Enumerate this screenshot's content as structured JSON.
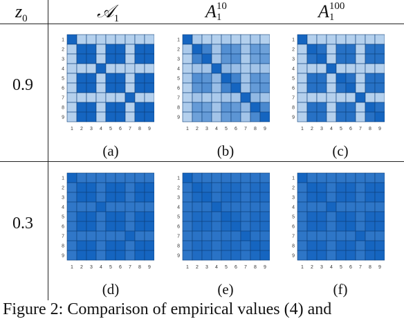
{
  "header": {
    "z_label": "z",
    "z_sub": "0",
    "col1_label": "𝒜",
    "col1_sub": "1",
    "col2_label": "A",
    "col2_sub": "1",
    "col2_sup": "10",
    "col3_label": "A",
    "col3_sup": "100",
    "col3_sub": "1"
  },
  "rows": [
    {
      "z": "0.9",
      "captions": [
        "(a)",
        "(b)",
        "(c)"
      ]
    },
    {
      "z": "0.3",
      "captions": [
        "(d)",
        "(e)",
        "(f)"
      ]
    }
  ],
  "axis_ticks": [
    "1",
    "2",
    "3",
    "4",
    "5",
    "6",
    "7",
    "8",
    "9"
  ],
  "colors": {
    "dark": "#1565c0",
    "light": "#b8d4ee"
  },
  "figure_caption": "Figure 2: Comparison of empirical values (4) and",
  "chart_data": [
    {
      "type": "heatmap",
      "caption": "(a)",
      "rows": [
        "1",
        "2",
        "3",
        "4",
        "5",
        "6",
        "7",
        "8",
        "9"
      ],
      "cols": [
        "1",
        "2",
        "3",
        "4",
        "5",
        "6",
        "7",
        "8",
        "9"
      ],
      "values": [
        [
          1.0,
          0.1,
          0.1,
          0.1,
          0.1,
          0.1,
          0.1,
          0.1,
          0.1
        ],
        [
          0.1,
          1.0,
          1.0,
          0.1,
          1.0,
          1.0,
          0.1,
          1.0,
          1.0
        ],
        [
          0.1,
          1.0,
          1.0,
          0.1,
          1.0,
          1.0,
          0.1,
          1.0,
          1.0
        ],
        [
          0.1,
          0.1,
          0.1,
          1.0,
          0.1,
          0.1,
          0.1,
          0.1,
          0.1
        ],
        [
          0.1,
          1.0,
          1.0,
          0.1,
          1.0,
          1.0,
          0.1,
          1.0,
          1.0
        ],
        [
          0.1,
          1.0,
          1.0,
          0.1,
          1.0,
          1.0,
          0.1,
          1.0,
          1.0
        ],
        [
          0.1,
          0.1,
          0.1,
          0.1,
          0.1,
          0.1,
          1.0,
          0.1,
          0.1
        ],
        [
          0.1,
          1.0,
          1.0,
          0.1,
          1.0,
          1.0,
          0.1,
          1.0,
          1.0
        ],
        [
          0.1,
          1.0,
          1.0,
          0.1,
          1.0,
          1.0,
          0.1,
          1.0,
          1.0
        ]
      ]
    },
    {
      "type": "heatmap",
      "caption": "(b)",
      "rows": [
        "1",
        "2",
        "3",
        "4",
        "5",
        "6",
        "7",
        "8",
        "9"
      ],
      "cols": [
        "1",
        "2",
        "3",
        "4",
        "5",
        "6",
        "7",
        "8",
        "9"
      ],
      "values": [
        [
          1.0,
          0.15,
          0.1,
          0.1,
          0.15,
          0.1,
          0.1,
          0.15,
          0.1
        ],
        [
          0.15,
          1.0,
          0.75,
          0.2,
          0.65,
          0.6,
          0.2,
          0.55,
          0.5
        ],
        [
          0.1,
          0.75,
          1.0,
          0.2,
          0.6,
          0.65,
          0.15,
          0.5,
          0.55
        ],
        [
          0.1,
          0.2,
          0.2,
          1.0,
          0.3,
          0.25,
          0.15,
          0.2,
          0.2
        ],
        [
          0.15,
          0.65,
          0.6,
          0.3,
          1.0,
          0.75,
          0.2,
          0.6,
          0.55
        ],
        [
          0.1,
          0.6,
          0.65,
          0.25,
          0.75,
          1.0,
          0.2,
          0.55,
          0.6
        ],
        [
          0.1,
          0.2,
          0.15,
          0.15,
          0.2,
          0.2,
          1.0,
          0.3,
          0.2
        ],
        [
          0.15,
          0.55,
          0.5,
          0.2,
          0.6,
          0.55,
          0.3,
          1.0,
          0.7
        ],
        [
          0.1,
          0.5,
          0.55,
          0.2,
          0.55,
          0.6,
          0.2,
          0.7,
          1.0
        ]
      ]
    },
    {
      "type": "heatmap",
      "caption": "(c)",
      "rows": [
        "1",
        "2",
        "3",
        "4",
        "5",
        "6",
        "7",
        "8",
        "9"
      ],
      "cols": [
        "1",
        "2",
        "3",
        "4",
        "5",
        "6",
        "7",
        "8",
        "9"
      ],
      "values": [
        [
          1.0,
          0.1,
          0.1,
          0.1,
          0.1,
          0.1,
          0.1,
          0.1,
          0.1
        ],
        [
          0.1,
          1.0,
          0.9,
          0.1,
          0.9,
          0.9,
          0.1,
          0.9,
          0.9
        ],
        [
          0.1,
          0.9,
          1.0,
          0.1,
          0.9,
          0.9,
          0.1,
          0.9,
          0.9
        ],
        [
          0.1,
          0.1,
          0.1,
          1.0,
          0.1,
          0.1,
          0.1,
          0.1,
          0.1
        ],
        [
          0.1,
          0.9,
          0.9,
          0.1,
          1.0,
          0.9,
          0.1,
          0.9,
          0.9
        ],
        [
          0.1,
          0.9,
          0.9,
          0.1,
          0.9,
          1.0,
          0.1,
          0.9,
          0.9
        ],
        [
          0.1,
          0.1,
          0.1,
          0.1,
          0.1,
          0.1,
          1.0,
          0.1,
          0.1
        ],
        [
          0.1,
          0.9,
          0.9,
          0.1,
          0.9,
          0.9,
          0.1,
          1.0,
          0.9
        ],
        [
          0.1,
          0.9,
          0.9,
          0.1,
          0.9,
          0.9,
          0.1,
          0.9,
          1.0
        ]
      ]
    },
    {
      "type": "heatmap",
      "caption": "(d)",
      "rows": [
        "1",
        "2",
        "3",
        "4",
        "5",
        "6",
        "7",
        "8",
        "9"
      ],
      "cols": [
        "1",
        "2",
        "3",
        "4",
        "5",
        "6",
        "7",
        "8",
        "9"
      ],
      "values": [
        [
          1.0,
          0.85,
          0.85,
          0.85,
          0.85,
          0.85,
          0.85,
          0.85,
          0.85
        ],
        [
          0.85,
          1.0,
          1.0,
          0.85,
          1.0,
          1.0,
          0.85,
          1.0,
          1.0
        ],
        [
          0.85,
          1.0,
          1.0,
          0.85,
          1.0,
          1.0,
          0.85,
          1.0,
          1.0
        ],
        [
          0.85,
          0.85,
          0.85,
          1.0,
          0.85,
          0.85,
          0.85,
          0.85,
          0.85
        ],
        [
          0.85,
          1.0,
          1.0,
          0.85,
          1.0,
          1.0,
          0.85,
          1.0,
          1.0
        ],
        [
          0.85,
          1.0,
          1.0,
          0.85,
          1.0,
          1.0,
          0.85,
          1.0,
          1.0
        ],
        [
          0.85,
          0.85,
          0.85,
          0.85,
          0.85,
          0.85,
          1.0,
          0.85,
          0.85
        ],
        [
          0.85,
          1.0,
          1.0,
          0.85,
          1.0,
          1.0,
          0.85,
          1.0,
          1.0
        ],
        [
          0.85,
          1.0,
          1.0,
          0.85,
          1.0,
          1.0,
          0.85,
          1.0,
          1.0
        ]
      ]
    },
    {
      "type": "heatmap",
      "caption": "(e)",
      "rows": [
        "1",
        "2",
        "3",
        "4",
        "5",
        "6",
        "7",
        "8",
        "9"
      ],
      "cols": [
        "1",
        "2",
        "3",
        "4",
        "5",
        "6",
        "7",
        "8",
        "9"
      ],
      "values": [
        [
          1.0,
          0.87,
          0.86,
          0.86,
          0.87,
          0.86,
          0.86,
          0.87,
          0.86
        ],
        [
          0.87,
          1.0,
          0.96,
          0.88,
          0.95,
          0.95,
          0.88,
          0.94,
          0.94
        ],
        [
          0.86,
          0.96,
          1.0,
          0.88,
          0.95,
          0.95,
          0.87,
          0.94,
          0.94
        ],
        [
          0.86,
          0.88,
          0.88,
          1.0,
          0.89,
          0.88,
          0.87,
          0.88,
          0.88
        ],
        [
          0.87,
          0.95,
          0.95,
          0.89,
          1.0,
          0.96,
          0.88,
          0.95,
          0.94
        ],
        [
          0.86,
          0.95,
          0.95,
          0.88,
          0.96,
          1.0,
          0.88,
          0.94,
          0.95
        ],
        [
          0.86,
          0.88,
          0.87,
          0.87,
          0.88,
          0.88,
          1.0,
          0.89,
          0.88
        ],
        [
          0.87,
          0.94,
          0.94,
          0.88,
          0.95,
          0.94,
          0.89,
          1.0,
          0.96
        ],
        [
          0.86,
          0.94,
          0.94,
          0.88,
          0.94,
          0.95,
          0.88,
          0.96,
          1.0
        ]
      ]
    },
    {
      "type": "heatmap",
      "caption": "(f)",
      "rows": [
        "1",
        "2",
        "3",
        "4",
        "5",
        "6",
        "7",
        "8",
        "9"
      ],
      "cols": [
        "1",
        "2",
        "3",
        "4",
        "5",
        "6",
        "7",
        "8",
        "9"
      ],
      "values": [
        [
          1.0,
          0.86,
          0.86,
          0.86,
          0.86,
          0.86,
          0.86,
          0.86,
          0.86
        ],
        [
          0.86,
          1.0,
          0.98,
          0.86,
          0.98,
          0.98,
          0.86,
          0.98,
          0.98
        ],
        [
          0.86,
          0.98,
          1.0,
          0.86,
          0.98,
          0.98,
          0.86,
          0.98,
          0.98
        ],
        [
          0.86,
          0.86,
          0.86,
          1.0,
          0.86,
          0.86,
          0.86,
          0.86,
          0.86
        ],
        [
          0.86,
          0.98,
          0.98,
          0.86,
          1.0,
          0.98,
          0.86,
          0.98,
          0.98
        ],
        [
          0.86,
          0.98,
          0.98,
          0.86,
          0.98,
          1.0,
          0.86,
          0.98,
          0.98
        ],
        [
          0.86,
          0.86,
          0.86,
          0.86,
          0.86,
          0.86,
          1.0,
          0.86,
          0.86
        ],
        [
          0.86,
          0.98,
          0.98,
          0.86,
          0.98,
          0.98,
          0.86,
          1.0,
          0.98
        ],
        [
          0.86,
          0.98,
          0.98,
          0.86,
          0.98,
          0.98,
          0.86,
          0.98,
          1.0
        ]
      ]
    }
  ]
}
